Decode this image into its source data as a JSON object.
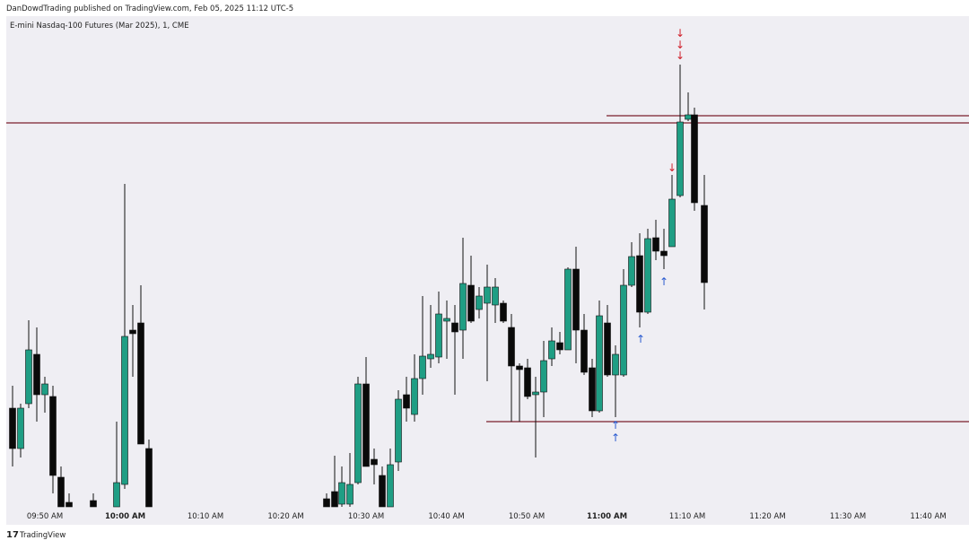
{
  "header": {
    "publisher": "DanDowdTrading published on TradingView.com, Feb 05, 2025 11:12 UTC-5"
  },
  "chart": {
    "symbol": "E-mini Nasdaq-100 Futures (Mar 2025), 1, CME",
    "time_labels": [
      "09:50 AM",
      "10:00 AM",
      "10:10 AM",
      "10:20 AM",
      "10:30 AM",
      "10:40 AM",
      "10:50 AM",
      "11:00 AM",
      "11:10 AM",
      "11:20 AM",
      "11:30 AM",
      "11:40 AM"
    ]
  },
  "footer": {
    "brand": "TradingView"
  }
}
